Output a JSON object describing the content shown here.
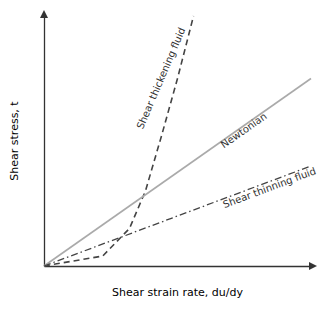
{
  "chart_data": {
    "type": "line",
    "xlabel": "Shear strain rate, du/dy",
    "ylabel": "Shear stress, t",
    "xlim": [
      0,
      1
    ],
    "ylim": [
      0,
      1
    ],
    "xticks": [],
    "yticks": [],
    "tick_labels": false,
    "grid": false,
    "series": [
      {
        "x": [
          0,
          0.22,
          0.32,
          0.38,
          0.44,
          0.5,
          0.56
        ],
        "values": [
          0,
          0.04,
          0.15,
          0.3,
          0.52,
          0.75,
          1.0
        ],
        "color": "#444444",
        "line_style": "dashed"
      },
      {
        "x": [
          0,
          1.0
        ],
        "values": [
          0,
          0.75
        ],
        "color": "#aaaaaa",
        "line_style": "solid"
      },
      {
        "x": [
          0,
          1.0
        ],
        "values": [
          0,
          0.4
        ],
        "color": "#444444",
        "line_style": "dashdot"
      }
    ],
    "annotations": [
      {
        "text": "Shear thickening fluid",
        "x": 0.38,
        "y": 0.54
      },
      {
        "text": "Newtonian",
        "x": 0.68,
        "y": 0.46
      },
      {
        "text": "Shear thinning fluid",
        "x": 0.68,
        "y": 0.22
      }
    ]
  }
}
